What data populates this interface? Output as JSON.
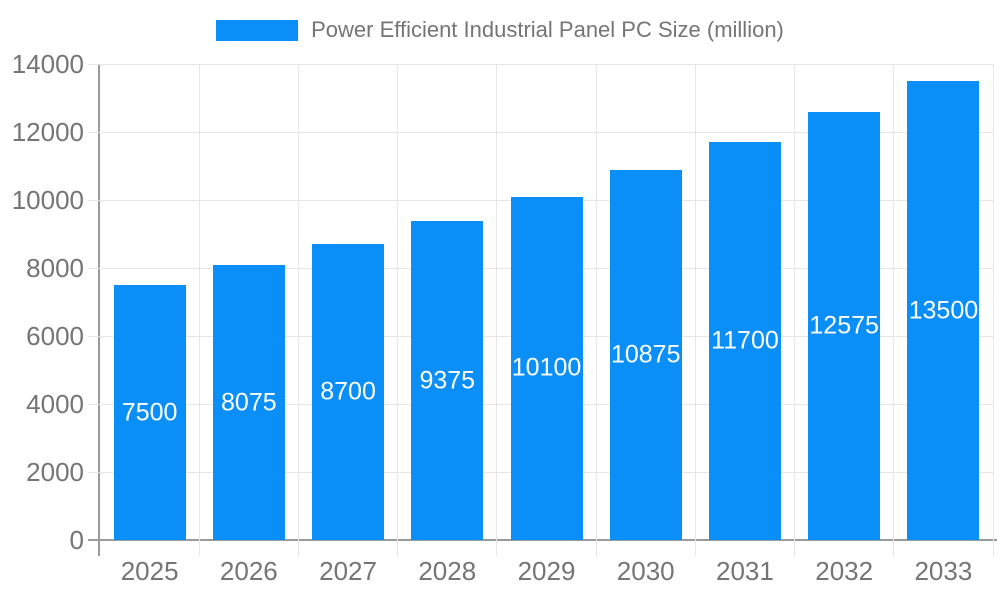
{
  "chart_data": {
    "type": "bar",
    "title": "Power Efficient Industrial Panel PC Size (million)",
    "series": [
      {
        "name": "Power Efficient Industrial Panel PC Size (million)",
        "values": [
          7500,
          8075,
          8700,
          9375,
          10100,
          10875,
          11700,
          12575,
          13500
        ]
      }
    ],
    "categories": [
      "2025",
      "2026",
      "2027",
      "2028",
      "2029",
      "2030",
      "2031",
      "2032",
      "2033"
    ],
    "data_labels": [
      "7500",
      "8075",
      "8700",
      "9375",
      "10100",
      "10875",
      "11700",
      "12575",
      "13500"
    ],
    "xlabel": "",
    "ylabel": "",
    "ylim": [
      0,
      14000
    ],
    "ytick_step": 2000,
    "ytick_labels": [
      "0",
      "2000",
      "4000",
      "6000",
      "8000",
      "10000",
      "12000",
      "14000"
    ],
    "grid": "on",
    "legend_position": "top-center",
    "colors": {
      "bar": "#0a8ff9",
      "bar_label": "#ffffff",
      "axis_text": "#757575",
      "axis_line": "#9a9a9a",
      "grid": "#e6e6e6",
      "background": "#ffffff"
    }
  }
}
